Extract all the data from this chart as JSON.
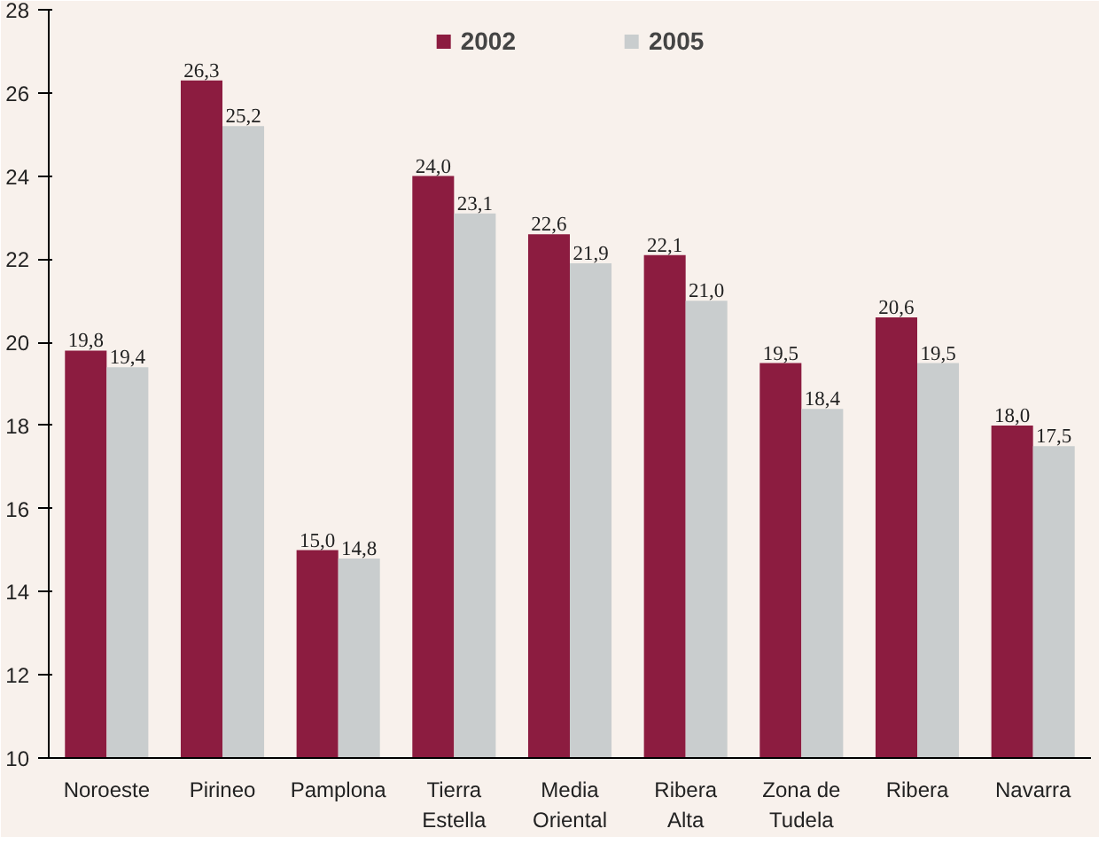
{
  "chart_data": {
    "type": "bar",
    "categories": [
      "Noroeste",
      "Pirineo",
      "Pamplona",
      "Tierra\nEstella",
      "Media\nOriental",
      "Ribera\nAlta",
      "Zona de\nTudela",
      "Ribera",
      "Navarra"
    ],
    "series": [
      {
        "name": "2002",
        "color": "#8c1c40",
        "values": [
          19.8,
          26.3,
          15.0,
          24.0,
          22.6,
          22.1,
          19.5,
          20.6,
          18.0
        ],
        "value_labels": [
          "19,8",
          "26,3",
          "15,0",
          "24,0",
          "22,6",
          "22,1",
          "19,5",
          "20,6",
          "18,0"
        ]
      },
      {
        "name": "2005",
        "color": "#c9cdce",
        "values": [
          19.4,
          25.2,
          14.8,
          23.1,
          21.9,
          21.0,
          18.4,
          19.5,
          17.5
        ],
        "value_labels": [
          "19,4",
          "25,2",
          "14,8",
          "23,1",
          "21,9",
          "21,0",
          "18,4",
          "19,5",
          "17,5"
        ]
      }
    ],
    "ylim": [
      10,
      28
    ],
    "yticks": [
      10,
      12,
      14,
      16,
      18,
      20,
      22,
      24,
      26,
      28
    ],
    "grid": false,
    "legend": "top"
  }
}
